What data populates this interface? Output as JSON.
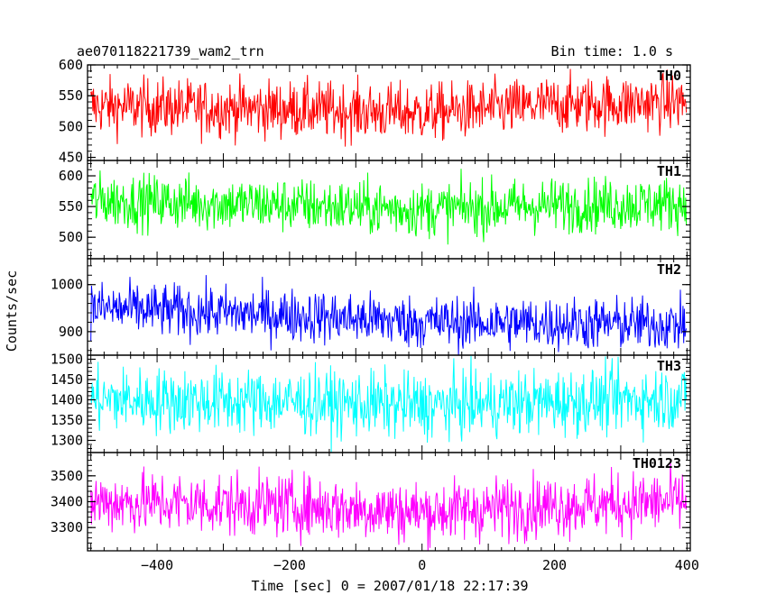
{
  "chart_data": {
    "type": "line",
    "title": "ae070118221739_wam2_trn",
    "bin_time_label": "Bin time: 1.0 s",
    "xlabel": "Time [sec] 0 = 2007/01/18 22:17:39",
    "ylabel": "Counts/sec",
    "xlim": [
      -505,
      405
    ],
    "x_ticks": [
      -400,
      -200,
      0,
      200,
      400
    ],
    "x_tick_labels": [
      "−400",
      "−200",
      "0",
      "200",
      "400"
    ],
    "bin_seconds": 1.0,
    "x_start": -500,
    "x_end": 399,
    "panels": [
      {
        "name": "TH0",
        "color": "#ff0000",
        "ylim": [
          445,
          600
        ],
        "y_ticks": [
          450,
          500,
          550,
          600
        ],
        "y_tick_labels": [
          "450",
          "500",
          "550",
          "600"
        ],
        "mean": 530,
        "noise": 23,
        "trend": [
          [
            -500,
            533
          ],
          [
            -200,
            528
          ],
          [
            0,
            522
          ],
          [
            200,
            535
          ],
          [
            400,
            540
          ]
        ]
      },
      {
        "name": "TH1",
        "color": "#00ff00",
        "ylim": [
          465,
          625
        ],
        "y_ticks": [
          500,
          550,
          600
        ],
        "y_tick_labels": [
          "500",
          "550",
          "600"
        ],
        "mean": 553,
        "noise": 22,
        "trend": [
          [
            -500,
            560
          ],
          [
            -200,
            552
          ],
          [
            0,
            545
          ],
          [
            200,
            552
          ],
          [
            400,
            555
          ]
        ]
      },
      {
        "name": "TH2",
        "color": "#0000ff",
        "ylim": [
          850,
          1055
        ],
        "y_ticks": [
          900,
          1000
        ],
        "y_tick_labels": [
          "900",
          "1000"
        ],
        "mean": 930,
        "noise": 28,
        "trend": [
          [
            -500,
            950
          ],
          [
            -200,
            935
          ],
          [
            0,
            920
          ],
          [
            200,
            918
          ],
          [
            400,
            915
          ]
        ]
      },
      {
        "name": "TH3",
        "color": "#00ffff",
        "ylim": [
          1270,
          1510
        ],
        "y_ticks": [
          1300,
          1350,
          1400,
          1450,
          1500
        ],
        "y_tick_labels": [
          "1300",
          "1350",
          "1400",
          "1450",
          "1500"
        ],
        "mean": 1395,
        "noise": 40,
        "trend": [
          [
            -500,
            1400
          ],
          [
            -200,
            1395
          ],
          [
            0,
            1385
          ],
          [
            200,
            1395
          ],
          [
            400,
            1405
          ]
        ]
      },
      {
        "name": "TH0123",
        "color": "#ff00ff",
        "ylim": [
          3210,
          3590
        ],
        "y_ticks": [
          3300,
          3400,
          3500
        ],
        "y_tick_labels": [
          "3300",
          "3400",
          "3500"
        ],
        "mean": 3380,
        "noise": 60,
        "trend": [
          [
            -500,
            3400
          ],
          [
            -200,
            3385
          ],
          [
            0,
            3360
          ],
          [
            200,
            3385
          ],
          [
            400,
            3400
          ]
        ]
      }
    ]
  }
}
